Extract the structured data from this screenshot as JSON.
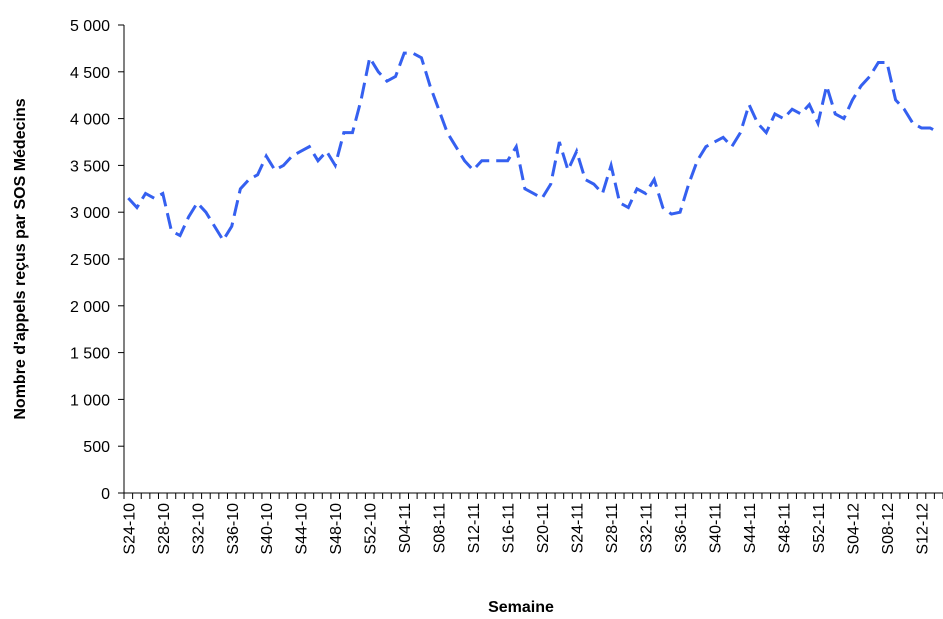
{
  "chart_data": {
    "type": "line",
    "x_label": "Semaine",
    "y_label": "Nombre d'appels reçus par SOS Médecins",
    "categories": [
      "S24-10",
      null,
      null,
      null,
      "S28-10",
      null,
      null,
      null,
      "S32-10",
      null,
      null,
      null,
      "S36-10",
      null,
      null,
      null,
      "S40-10",
      null,
      null,
      null,
      "S44-10",
      null,
      null,
      null,
      "S48-10",
      null,
      null,
      null,
      "S52-10",
      null,
      null,
      null,
      "S04-11",
      null,
      null,
      null,
      "S08-11",
      null,
      null,
      null,
      "S12-11",
      null,
      null,
      null,
      "S16-11",
      null,
      null,
      null,
      "S20-11",
      null,
      null,
      null,
      "S24-11",
      null,
      null,
      null,
      "S28-11",
      null,
      null,
      null,
      "S32-11",
      null,
      null,
      null,
      "S36-11",
      null,
      null,
      null,
      "S40-11",
      null,
      null,
      null,
      "S44-11",
      null,
      null,
      null,
      "S48-11",
      null,
      null,
      null,
      "S52-11",
      null,
      null,
      null,
      "S04-12",
      null,
      null,
      null,
      "S08-12",
      null,
      null,
      null,
      "S12-12",
      null,
      null
    ],
    "values": [
      3150,
      3050,
      3200,
      3150,
      3200,
      2800,
      2750,
      2950,
      3100,
      3000,
      2850,
      2700,
      2850,
      3250,
      3350,
      3400,
      3600,
      3450,
      3500,
      3600,
      3650,
      3700,
      3550,
      3650,
      3500,
      3850,
      3850,
      4200,
      4650,
      4500,
      4400,
      4450,
      4700,
      4700,
      4650,
      4350,
      4100,
      3850,
      3700,
      3550,
      3450,
      3550,
      3550,
      3550,
      3550,
      3700,
      3250,
      3200,
      3150,
      3300,
      3750,
      3450,
      3650,
      3350,
      3300,
      3200,
      3500,
      3100,
      3050,
      3250,
      3200,
      3350,
      3050,
      2980,
      3000,
      3300,
      3550,
      3700,
      3750,
      3800,
      3700,
      3850,
      4150,
      3950,
      3850,
      4050,
      4000,
      4100,
      4050,
      4150,
      3950,
      4350,
      4050,
      4000,
      4200,
      4350,
      4450,
      4600,
      4600,
      4200,
      4100,
      3950,
      3900,
      3900,
      3850
    ],
    "color": "#3560f0",
    "line_style": "dashed",
    "ylim": [
      0,
      5000
    ],
    "yticks": [
      0,
      500,
      {
        "value": 1000,
        "label": "1 000"
      },
      {
        "value": 1500,
        "label": "1 500"
      },
      {
        "value": 2000,
        "label": "2 000"
      },
      {
        "value": 2500,
        "label": "2 500"
      },
      {
        "value": 3000,
        "label": "3 000"
      },
      {
        "value": 3500,
        "label": "3 500"
      },
      {
        "value": 4000,
        "label": "4 000"
      },
      {
        "value": 4500,
        "label": "4 500"
      },
      {
        "value": 5000,
        "label": "5 000"
      }
    ],
    "grid": false
  }
}
